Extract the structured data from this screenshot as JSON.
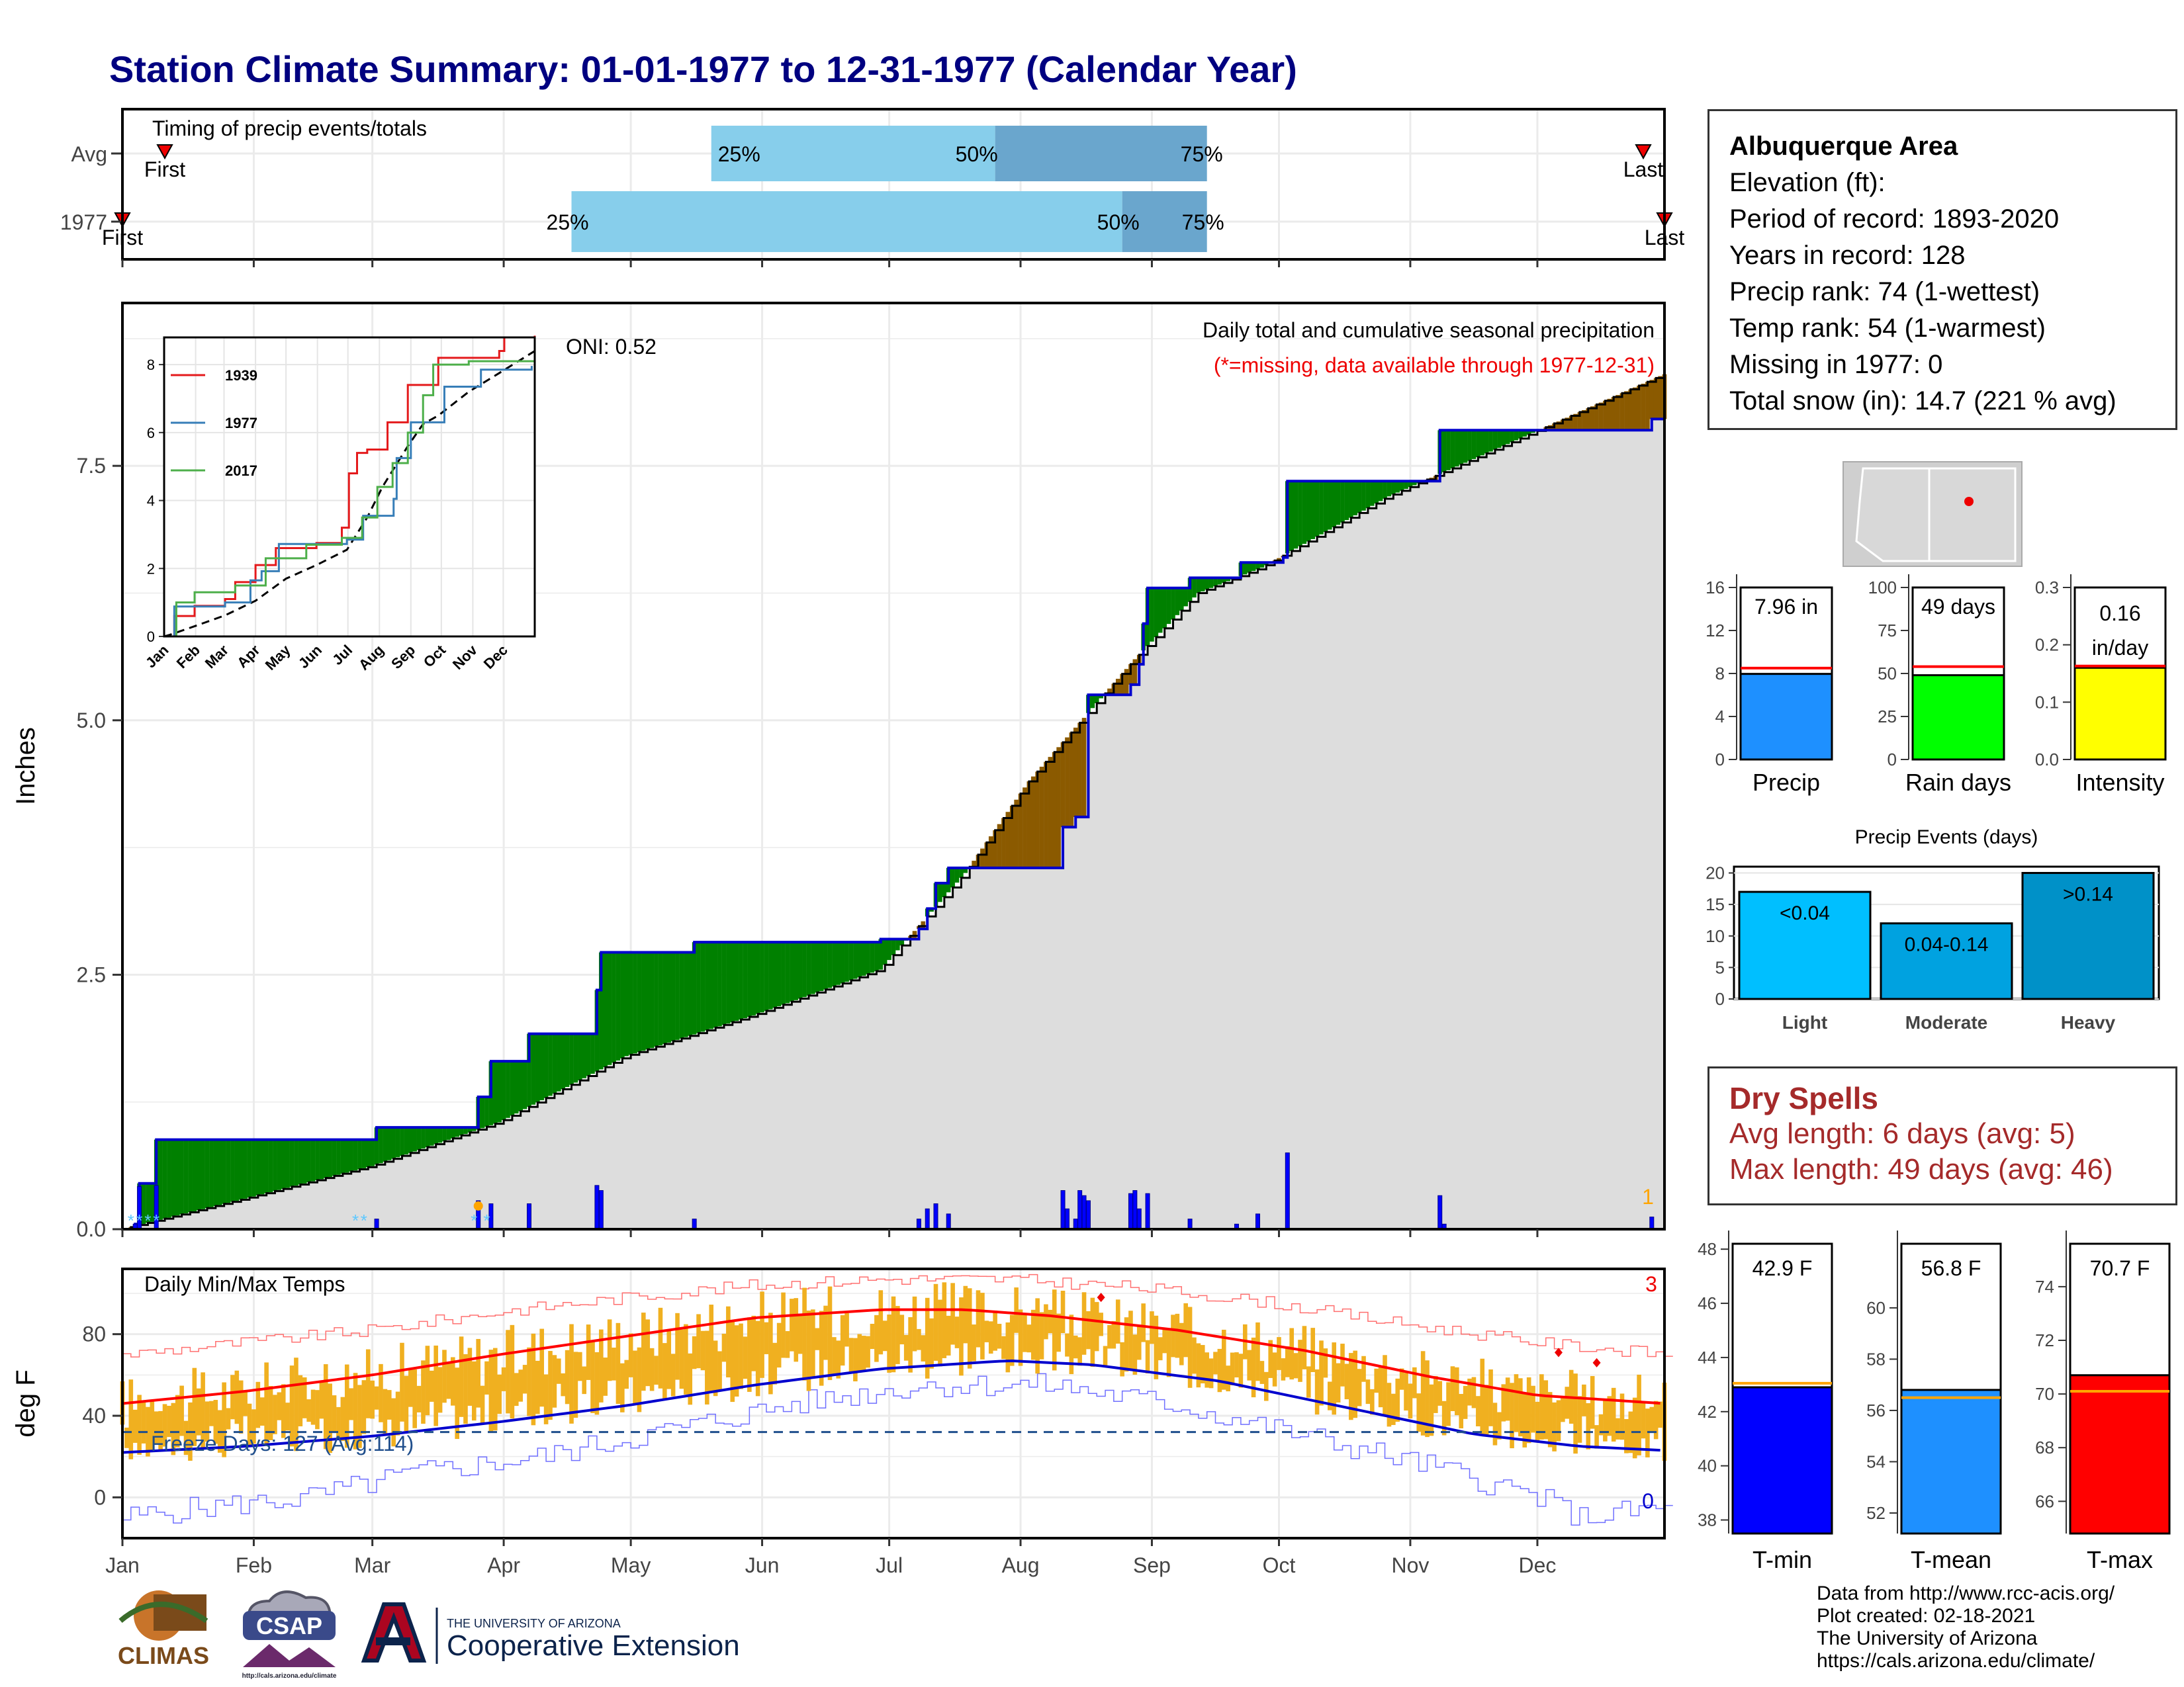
{
  "title": "Station Climate Summary: 01-01-1977 to 12-31-1977 (Calendar Year)",
  "months": [
    "Jan",
    "Feb",
    "Mar",
    "Apr",
    "May",
    "Jun",
    "Jul",
    "Aug",
    "Sep",
    "Oct",
    "Nov",
    "Dec"
  ],
  "colors": {
    "title": "#000080",
    "cum_1977": "#0000cd",
    "surplus": "#008000",
    "deficit": "#8b5a00",
    "avg_area": "#dddddd",
    "quartile_light": "#87ceeb",
    "quartile_dark": "#6aa6cd",
    "temp_bar": "#f0b020",
    "tmax_line": "#ff0000",
    "tmin_line": "#0000cd"
  },
  "timing": {
    "title": "Timing of precip events/totals",
    "rows": [
      {
        "label": "Avg",
        "first_label": "First",
        "last_label": "Last",
        "first_day": 11,
        "last_day": 360,
        "q25_day": 140,
        "q50_day": 207,
        "q75_day": 257,
        "q25": "25%",
        "q50": "50%",
        "q75": "75%"
      },
      {
        "label": "1977",
        "first_label": "First",
        "last_label": "Last",
        "first_day": 1,
        "last_day": 365,
        "q25_day": 107,
        "q50_day": 237,
        "q75_day": 257,
        "q25": "25%",
        "q50": "50%",
        "q75": "75%"
      }
    ]
  },
  "precip": {
    "ylabel": "Inches",
    "yticks": [
      "0.0",
      "2.5",
      "5.0",
      "7.5"
    ],
    "ylim": [
      0,
      9.1
    ],
    "subtitle": "Daily total and cumulative seasonal precipitation",
    "missing_note": "(*=missing, data available through 1977-12-31)",
    "oni": "ONI: 0.52",
    "corner_count": "1",
    "cum_1977": [
      [
        1,
        0
      ],
      [
        4,
        0.05
      ],
      [
        5,
        0.45
      ],
      [
        8,
        0.45
      ],
      [
        9,
        0.88
      ],
      [
        60,
        0.88
      ],
      [
        61,
        1.0
      ],
      [
        84,
        1.0
      ],
      [
        85,
        1.3
      ],
      [
        87,
        1.3
      ],
      [
        88,
        1.65
      ],
      [
        96,
        1.65
      ],
      [
        97,
        1.92
      ],
      [
        112,
        1.92
      ],
      [
        113,
        2.35
      ],
      [
        114,
        2.72
      ],
      [
        135,
        2.72
      ],
      [
        136,
        2.82
      ],
      [
        177,
        2.82
      ],
      [
        180,
        2.85
      ],
      [
        189,
        2.95
      ],
      [
        191,
        3.15
      ],
      [
        193,
        3.4
      ],
      [
        196,
        3.55
      ],
      [
        221,
        3.55
      ],
      [
        223,
        3.95
      ],
      [
        226,
        4.05
      ],
      [
        229,
        5.25
      ],
      [
        239,
        5.35
      ],
      [
        241,
        5.55
      ],
      [
        242,
        5.95
      ],
      [
        243,
        6.3
      ],
      [
        253,
        6.4
      ],
      [
        264,
        6.4
      ],
      [
        265,
        6.55
      ],
      [
        275,
        6.6
      ],
      [
        276,
        7.35
      ],
      [
        311,
        7.35
      ],
      [
        312,
        7.85
      ],
      [
        360,
        7.85
      ],
      [
        362,
        7.96
      ],
      [
        365,
        7.96
      ]
    ],
    "avg_cum": [
      [
        1,
        0
      ],
      [
        30,
        0.3
      ],
      [
        60,
        0.62
      ],
      [
        90,
        1.05
      ],
      [
        120,
        1.7
      ],
      [
        150,
        2.1
      ],
      [
        180,
        2.55
      ],
      [
        200,
        3.5
      ],
      [
        215,
        4.4
      ],
      [
        240,
        5.6
      ],
      [
        255,
        6.25
      ],
      [
        270,
        6.5
      ],
      [
        300,
        7.2
      ],
      [
        330,
        7.75
      ],
      [
        365,
        8.4
      ]
    ],
    "daily": [
      [
        4,
        0.05
      ],
      [
        5,
        0.42
      ],
      [
        9,
        0.43
      ],
      [
        61,
        0.1
      ],
      [
        85,
        0.28
      ],
      [
        88,
        0.25
      ],
      [
        97,
        0.25
      ],
      [
        113,
        0.43
      ],
      [
        114,
        0.38
      ],
      [
        136,
        0.1
      ],
      [
        189,
        0.1
      ],
      [
        191,
        0.2
      ],
      [
        193,
        0.25
      ],
      [
        196,
        0.15
      ],
      [
        223,
        0.38
      ],
      [
        224,
        0.2
      ],
      [
        226,
        0.1
      ],
      [
        227,
        0.38
      ],
      [
        228,
        0.33
      ],
      [
        229,
        0.28
      ],
      [
        239,
        0.35
      ],
      [
        240,
        0.38
      ],
      [
        241,
        0.2
      ],
      [
        243,
        0.35
      ],
      [
        253,
        0.1
      ],
      [
        264,
        0.05
      ],
      [
        269,
        0.15
      ],
      [
        276,
        0.75
      ],
      [
        312,
        0.33
      ],
      [
        313,
        0.05
      ],
      [
        362,
        0.12
      ]
    ],
    "snow_days": [
      3,
      5,
      7,
      9,
      56,
      58,
      84,
      87
    ],
    "inset": {
      "yticks": [
        "0",
        "2",
        "4",
        "6",
        "8"
      ],
      "ylim": [
        0,
        8.8
      ],
      "months": [
        "Jan",
        "Feb",
        "Mar",
        "Apr",
        "May",
        "Jun",
        "Jul",
        "Aug",
        "Sep",
        "Oct",
        "Nov",
        "Dec"
      ],
      "series": [
        {
          "name": "1939",
          "color": "#e41a1c",
          "points": [
            [
              0,
              0
            ],
            [
              10,
              0.6
            ],
            [
              30,
              0.9
            ],
            [
              60,
              1.1
            ],
            [
              70,
              1.6
            ],
            [
              90,
              2.1
            ],
            [
              110,
              2.6
            ],
            [
              150,
              2.75
            ],
            [
              175,
              3.2
            ],
            [
              182,
              4.8
            ],
            [
              190,
              5.4
            ],
            [
              200,
              5.5
            ],
            [
              220,
              6.3
            ],
            [
              240,
              7.4
            ],
            [
              270,
              8.2
            ],
            [
              330,
              8.4
            ],
            [
              335,
              8.8
            ],
            [
              365,
              8.85
            ]
          ]
        },
        {
          "name": "1977",
          "color": "#377eb8",
          "points": [
            [
              0,
              0
            ],
            [
              10,
              0.88
            ],
            [
              60,
              1.0
            ],
            [
              85,
              1.65
            ],
            [
              96,
              1.92
            ],
            [
              113,
              2.72
            ],
            [
              180,
              2.85
            ],
            [
              196,
              3.55
            ],
            [
              226,
              4.05
            ],
            [
              229,
              5.25
            ],
            [
              243,
              6.3
            ],
            [
              276,
              7.35
            ],
            [
              312,
              7.85
            ],
            [
              362,
              7.96
            ]
          ]
        },
        {
          "name": "2017",
          "color": "#4daf4a",
          "points": [
            [
              0,
              0
            ],
            [
              12,
              1.0
            ],
            [
              30,
              1.3
            ],
            [
              70,
              1.5
            ],
            [
              100,
              2.3
            ],
            [
              140,
              2.7
            ],
            [
              175,
              2.9
            ],
            [
              195,
              3.5
            ],
            [
              210,
              4.4
            ],
            [
              225,
              5.1
            ],
            [
              240,
              6.0
            ],
            [
              255,
              7.1
            ],
            [
              265,
              8.0
            ],
            [
              300,
              8.1
            ],
            [
              365,
              8.1
            ]
          ]
        }
      ]
    }
  },
  "temps": {
    "ylabel": "deg F",
    "yticks": [
      "0",
      "40",
      "80"
    ],
    "ylim": [
      -20,
      112
    ],
    "title": "Daily Min/Max Temps",
    "freeze_text": "Freeze Days: 127 (Avg:114)",
    "freeze_line": 32,
    "count_top": "3",
    "count_bottom": "0",
    "tmax_avg": [
      [
        1,
        46
      ],
      [
        30,
        52
      ],
      [
        60,
        60
      ],
      [
        90,
        70
      ],
      [
        120,
        79
      ],
      [
        150,
        88
      ],
      [
        180,
        92
      ],
      [
        200,
        92
      ],
      [
        220,
        89
      ],
      [
        250,
        82
      ],
      [
        280,
        72
      ],
      [
        310,
        59
      ],
      [
        335,
        50
      ],
      [
        365,
        46
      ]
    ],
    "tmin_avg": [
      [
        1,
        22
      ],
      [
        30,
        25
      ],
      [
        60,
        30
      ],
      [
        90,
        37
      ],
      [
        120,
        45
      ],
      [
        150,
        55
      ],
      [
        180,
        63
      ],
      [
        210,
        67
      ],
      [
        230,
        65
      ],
      [
        260,
        57
      ],
      [
        290,
        44
      ],
      [
        320,
        31
      ],
      [
        345,
        25
      ],
      [
        365,
        23
      ]
    ],
    "tmax_rec": [
      [
        1,
        70
      ],
      [
        30,
        76
      ],
      [
        60,
        82
      ],
      [
        90,
        91
      ],
      [
        120,
        98
      ],
      [
        150,
        104
      ],
      [
        180,
        107
      ],
      [
        210,
        107
      ],
      [
        240,
        103
      ],
      [
        270,
        96
      ],
      [
        300,
        86
      ],
      [
        335,
        76
      ],
      [
        365,
        70
      ]
    ],
    "tmin_rec": [
      [
        1,
        -10
      ],
      [
        20,
        -5
      ],
      [
        45,
        0
      ],
      [
        70,
        12
      ],
      [
        100,
        20
      ],
      [
        130,
        33
      ],
      [
        160,
        46
      ],
      [
        190,
        55
      ],
      [
        220,
        55
      ],
      [
        250,
        45
      ],
      [
        280,
        30
      ],
      [
        310,
        15
      ],
      [
        335,
        0
      ],
      [
        345,
        -10
      ],
      [
        365,
        -5
      ]
    ],
    "markers": [
      [
        232,
        98
      ],
      [
        340,
        71
      ],
      [
        349,
        66
      ]
    ]
  },
  "info": {
    "station": "Albuquerque Area",
    "lines": [
      "Elevation (ft):",
      "Period of record: 1893-2020",
      "Years in record: 128",
      "Precip rank: 74 (1-wettest)",
      "Temp rank: 54 (1-warmest)",
      "Missing in 1977: 0",
      "Total snow (in): 14.7 (221 % avg)"
    ]
  },
  "gauges": [
    {
      "name": "Precip",
      "value": 7.96,
      "avg": 8.5,
      "label": "7.96 in",
      "min": 0,
      "max": 16,
      "ticks": [
        "0",
        "4",
        "8",
        "12",
        "16"
      ],
      "color": "#1e90ff"
    },
    {
      "name": "Rain days",
      "value": 49,
      "avg": 54,
      "label": "49 days",
      "min": 0,
      "max": 100,
      "ticks": [
        "0",
        "25",
        "50",
        "75",
        "100"
      ],
      "color": "#00ff00"
    },
    {
      "name": "Intensity",
      "value": 0.16,
      "avg": 0.163,
      "label": "0.16\nin/day",
      "label1": "0.16",
      "label2": "in/day",
      "min": 0,
      "max": 0.3,
      "ticks": [
        "0.0",
        "0.1",
        "0.2",
        "0.3"
      ],
      "color": "#ffff00"
    }
  ],
  "events": {
    "title": "Precip Events (days)",
    "categories": [
      "Light",
      "Moderate",
      "Heavy"
    ],
    "values": [
      17,
      12,
      20
    ],
    "bar_labels": [
      "<0.04",
      "0.04-0.14",
      ">0.14"
    ],
    "ticks": [
      "0",
      "5",
      "10",
      "15",
      "20"
    ],
    "ylim": [
      0,
      21
    ],
    "colors": [
      "#00bfff",
      "#00a2e0",
      "#0091c8"
    ]
  },
  "dry": {
    "title": "Dry Spells",
    "avg": "Avg length: 6 days (avg: 5)",
    "max": "Max length: 49 days (avg: 46)"
  },
  "temp_gauges": [
    {
      "name": "T-min",
      "value": 42.9,
      "avg": 43.05,
      "label": "42.9 F",
      "min": 37.5,
      "max": 48.2,
      "ticks": [
        "38",
        "40",
        "42",
        "44",
        "46",
        "48"
      ],
      "tickvals": [
        38,
        40,
        42,
        44,
        46,
        48
      ],
      "color": "#0000ff"
    },
    {
      "name": "T-mean",
      "value": 56.8,
      "avg": 56.5,
      "label": "56.8 F",
      "min": 51.2,
      "max": 62.5,
      "ticks": [
        "52",
        "54",
        "56",
        "58",
        "60"
      ],
      "tickvals": [
        52,
        54,
        56,
        58,
        60
      ],
      "color": "#1e90ff"
    },
    {
      "name": "T-max",
      "value": 70.7,
      "avg": 70.1,
      "label": "70.7 F",
      "min": 64.8,
      "max": 75.6,
      "ticks": [
        "66",
        "68",
        "70",
        "72",
        "74"
      ],
      "tickvals": [
        66,
        68,
        70,
        72,
        74
      ],
      "color": "#ff0000"
    }
  ],
  "logos": {
    "climas": "CLIMAS",
    "csap": "CSAP",
    "csap_url": "http://cals.arizona.edu/climate",
    "ua_small": "THE UNIVERSITY OF ARIZONA",
    "ua_big": "Cooperative Extension"
  },
  "credits": [
    "Data from http://www.rcc-acis.org/",
    "Plot created: 02-18-2021",
    "The University of Arizona",
    "https://cals.arizona.edu/climate/"
  ]
}
